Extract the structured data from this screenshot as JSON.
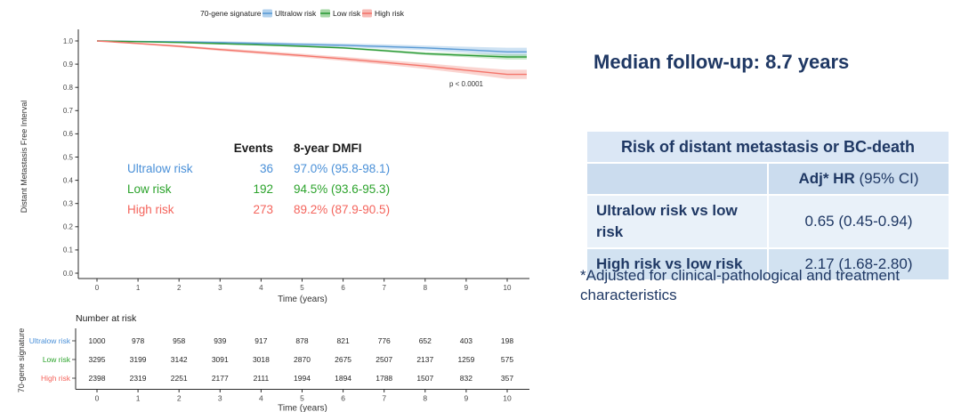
{
  "right_panel": {
    "heading": "Median follow-up: 8.7 years",
    "table": {
      "title": "Risk of distant metastasis or BC-death",
      "col_header_bold": "Adj* HR",
      "col_header_rest": " (95% CI)",
      "rows": [
        {
          "label": "Ultralow risk vs low risk",
          "value": "0.65 (0.45-0.94)"
        },
        {
          "label": "High risk vs low risk",
          "value": "2.17 (1.68-2.80)"
        }
      ]
    },
    "footnote": "*Adjusted for clinical-pathological and treatment characteristics",
    "navy_color": "#1f3864"
  },
  "chart_data": {
    "type": "line",
    "subtype": "kaplan-meier-with-confidence-bands",
    "legend_title": "70-gene signature",
    "xlabel": "Time (years)",
    "ylabel": "Distant Metastasis Free Interval",
    "xlim": [
      0,
      10
    ],
    "ylim": [
      0.0,
      1.0
    ],
    "x_ticks": [
      0,
      1,
      2,
      3,
      4,
      5,
      6,
      7,
      8,
      9,
      10
    ],
    "y_ticks": [
      1.0,
      0.9,
      0.8,
      0.7,
      0.6,
      0.5,
      0.4,
      0.3,
      0.2,
      0.1,
      0.0
    ],
    "grid": false,
    "legend_position": "top",
    "p_value": "p < 0.0001",
    "annotation_headers": {
      "events": "Events",
      "dmfi": "8-year DMFI"
    },
    "at_risk_title": "Number at risk",
    "at_risk_axis_label": "70-gene signature",
    "at_risk_xlabel": "Time (years)",
    "series": [
      {
        "name": "Ultralow risk",
        "line_color": "#5b9bd5",
        "band_color": "#9ec6e8",
        "label_color": "#4a90d8",
        "events": "36",
        "dmfi_8yr": "97.0% (95.8-98.1)",
        "x": [
          0,
          1,
          2,
          3,
          4,
          5,
          6,
          7,
          8,
          9,
          10
        ],
        "y": [
          1.0,
          0.998,
          0.996,
          0.993,
          0.989,
          0.985,
          0.981,
          0.976,
          0.97,
          0.962,
          0.953
        ],
        "ci_half": [
          0.001,
          0.003,
          0.004,
          0.005,
          0.006,
          0.007,
          0.008,
          0.009,
          0.01,
          0.013,
          0.018
        ],
        "at_risk": [
          1000,
          978,
          958,
          939,
          917,
          878,
          821,
          776,
          652,
          403,
          198
        ]
      },
      {
        "name": "Low risk",
        "line_color": "#2d9b39",
        "band_color": "#90cd90",
        "label_color": "#2ca32c",
        "events": "192",
        "dmfi_8yr": "94.5% (93.6-95.3)",
        "x": [
          0,
          1,
          2,
          3,
          4,
          5,
          6,
          7,
          8,
          9,
          10
        ],
        "y": [
          1.0,
          0.997,
          0.993,
          0.988,
          0.983,
          0.977,
          0.97,
          0.958,
          0.945,
          0.938,
          0.931
        ],
        "ci_half": [
          0.001,
          0.0015,
          0.002,
          0.0025,
          0.003,
          0.0035,
          0.004,
          0.005,
          0.006,
          0.008,
          0.011
        ],
        "at_risk": [
          3295,
          3199,
          3142,
          3091,
          3018,
          2870,
          2675,
          2507,
          2137,
          1259,
          575
        ]
      },
      {
        "name": "High risk",
        "line_color": "#f4756b",
        "band_color": "#f5a9a2",
        "label_color": "#f4645c",
        "events": "273",
        "dmfi_8yr": "89.2% (87.9-90.5)",
        "x": [
          0,
          1,
          2,
          3,
          4,
          5,
          6,
          7,
          8,
          9,
          10
        ],
        "y": [
          1.0,
          0.989,
          0.977,
          0.963,
          0.95,
          0.937,
          0.923,
          0.908,
          0.892,
          0.874,
          0.856
        ],
        "ci_half": [
          0.001,
          0.003,
          0.005,
          0.006,
          0.007,
          0.008,
          0.009,
          0.01,
          0.012,
          0.015,
          0.02
        ],
        "at_risk": [
          2398,
          2319,
          2251,
          2177,
          2111,
          1994,
          1894,
          1788,
          1507,
          832,
          357
        ]
      }
    ]
  }
}
